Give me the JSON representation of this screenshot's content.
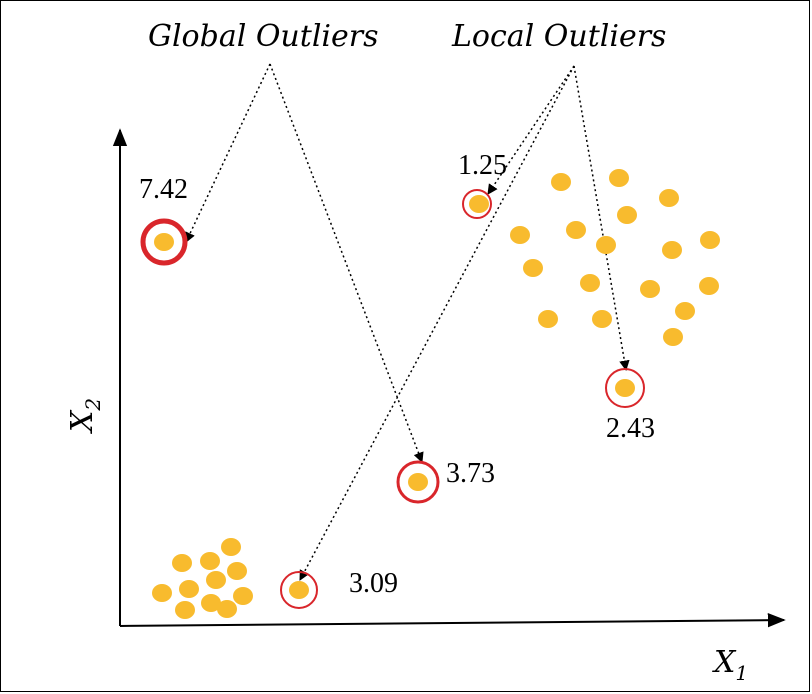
{
  "labels": {
    "global_outliers": "Global Outliers",
    "local_outliers": "Local Outliers"
  },
  "axes": {
    "x_label": "X",
    "x_subscript": "1",
    "y_label": "X",
    "y_subscript": "2"
  },
  "scores": {
    "top_left_outlier": "7.42",
    "cluster_adjacent_outlier": "1.25",
    "below_cluster_outlier": "2.43",
    "middle_outlier": "3.73",
    "bottom_outlier": "3.09"
  },
  "colors": {
    "point": "#f8bb2e",
    "ring": "#d9262b",
    "axis": "#000000"
  }
}
